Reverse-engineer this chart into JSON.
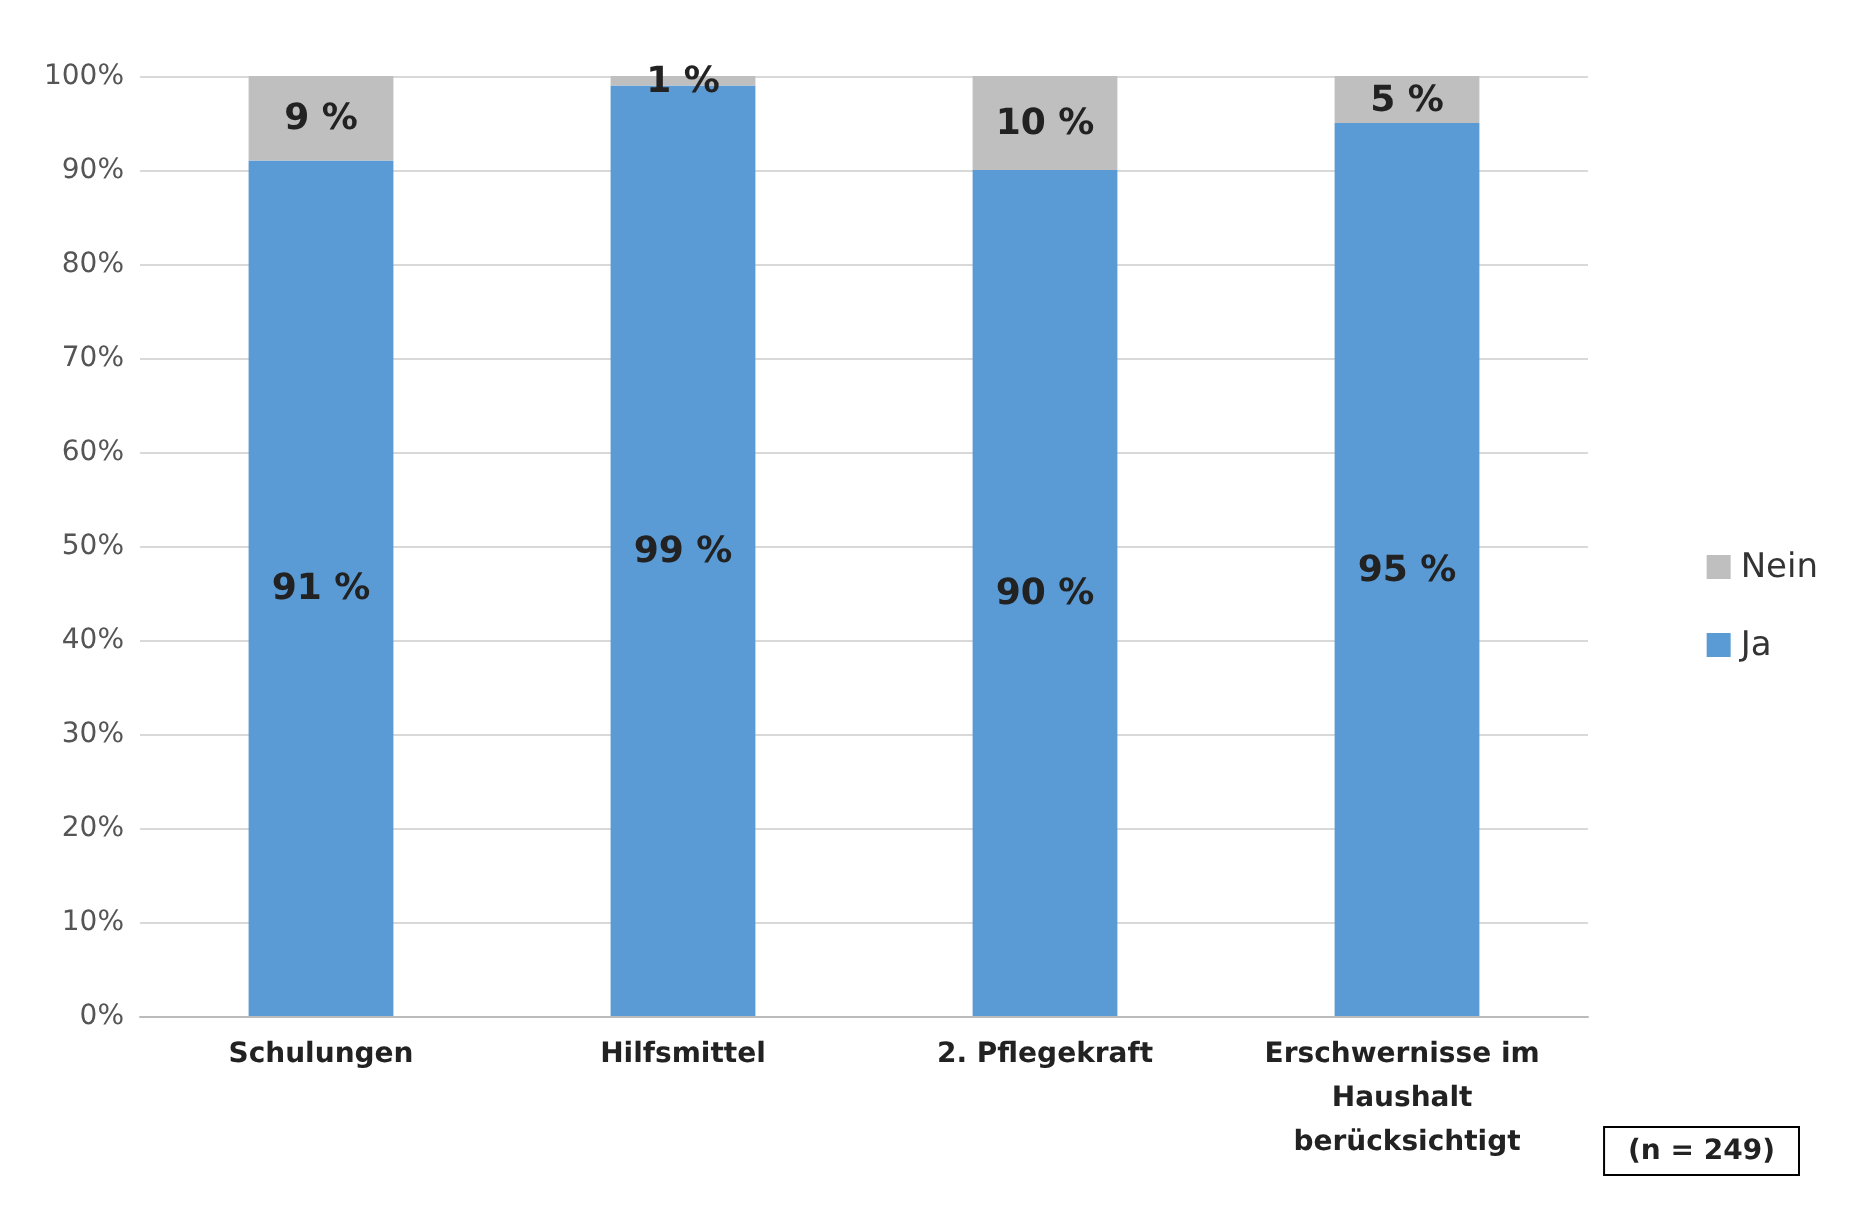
{
  "chart_data": {
    "type": "bar",
    "stacked": true,
    "categories": [
      "Schulungen",
      "Hilfsmittel",
      "2. Pflegekraft",
      "Erschwernisse im Haushalt berücksichtigt"
    ],
    "series": [
      {
        "name": "Ja",
        "color": "#5b9bd5",
        "values": [
          91,
          99,
          90,
          95
        ],
        "value_labels": [
          "91 %",
          "99 %",
          "90 %",
          "95 %"
        ]
      },
      {
        "name": "Nein",
        "color": "#bfbfbf",
        "values": [
          9,
          1,
          10,
          5
        ],
        "value_labels": [
          "9 %",
          "1 %",
          "10 %",
          "5 %"
        ]
      }
    ],
    "ylim": [
      0,
      100
    ],
    "yticks": [
      {
        "value": 0,
        "label": "0%"
      },
      {
        "value": 10,
        "label": "10%"
      },
      {
        "value": 20,
        "label": "20%"
      },
      {
        "value": 30,
        "label": "30%"
      },
      {
        "value": 40,
        "label": "40%"
      },
      {
        "value": 50,
        "label": "50%"
      },
      {
        "value": 60,
        "label": "60%"
      },
      {
        "value": 70,
        "label": "70%"
      },
      {
        "value": 80,
        "label": "80%"
      },
      {
        "value": 90,
        "label": "90%"
      },
      {
        "value": 100,
        "label": "100%"
      }
    ],
    "grid": "y",
    "legend": "right",
    "annotations": [
      "(n = 249)"
    ]
  }
}
